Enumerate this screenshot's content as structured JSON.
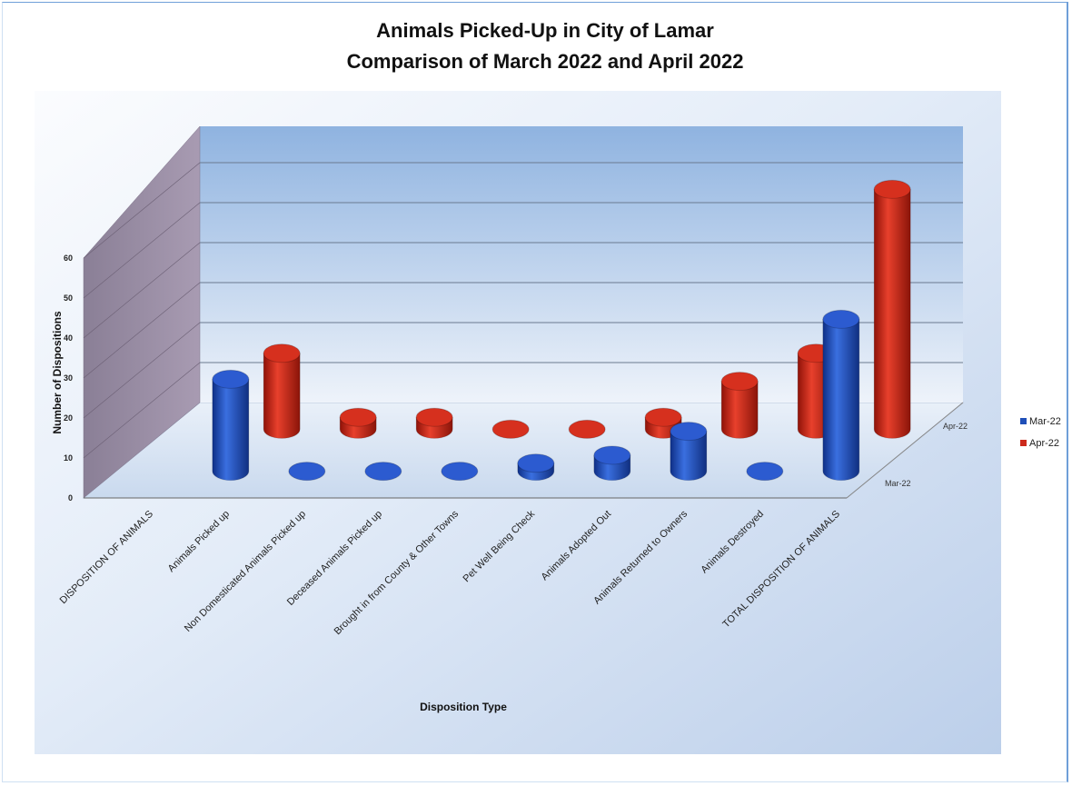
{
  "chart_data": {
    "type": "bar",
    "subtype": "3d-cylinder",
    "title": "Animals Picked-Up in City of Lamar",
    "subtitle": "Comparison of March 2022 and April 2022",
    "xlabel": "Disposition Type",
    "ylabel": "Number of Dispositions",
    "ylim": [
      0,
      60
    ],
    "yticks": [
      "0",
      "10",
      "20",
      "30",
      "40",
      "50",
      "60"
    ],
    "categories": [
      "DISPOSITION OF ANIMALS",
      "Animals Picked up",
      "Non Domesticated Animals Picked up",
      "Deceased Animals Picked up",
      "Brought in from County & Other Towns",
      "Pet Well Being Check",
      "Animals Adopted Out",
      "Animals Returned to Owners",
      "Animals Destroyed",
      "TOTAL DISPOSITION OF ANIMALS"
    ],
    "series": [
      {
        "name": "Mar-22",
        "color": "#1f4fb8",
        "values": [
          null,
          23,
          0,
          0,
          0,
          2,
          4,
          10,
          0,
          38
        ]
      },
      {
        "name": "Apr-22",
        "color": "#cc2a1c",
        "values": [
          null,
          19,
          3,
          3,
          0,
          0,
          3,
          12,
          19,
          60
        ]
      }
    ],
    "depth_labels": [
      "Apr-22",
      "Mar-22"
    ],
    "legend_position": "right",
    "grid": true
  }
}
